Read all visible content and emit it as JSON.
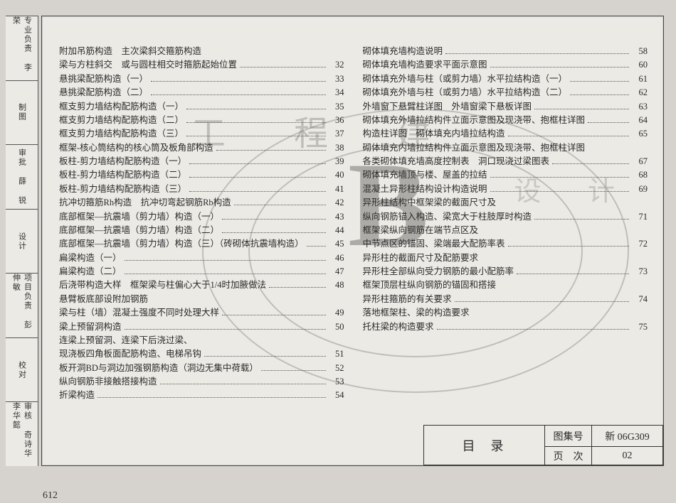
{
  "watermark": {
    "line1": "工 程 建",
    "line2": "设 计",
    "big_letter": "B"
  },
  "spine_labels": [
    "专业负责 李 荣",
    "制图 ",
    "审批 薛 锐",
    "设计 ",
    "项目负责 彭伸敏",
    "校对 ",
    "审核 奇诗华 李华懿"
  ],
  "columns": [
    [
      {
        "t": "附加吊筋构造　主次梁斜交箍筋构造",
        "p": ""
      },
      {
        "t": "梁与方柱斜交　或与圆柱相交时箍筋起始位置",
        "p": "32"
      },
      {
        "t": "悬挑梁配筋构造（一）",
        "p": "33"
      },
      {
        "t": "悬挑梁配筋构造（二）",
        "p": "34"
      },
      {
        "t": "框支剪力墙结构配筋构造（一）",
        "p": "35"
      },
      {
        "t": "框支剪力墙结构配筋构造（二）",
        "p": "36"
      },
      {
        "t": "框支剪力墙结构配筋构造（三）",
        "p": "37"
      },
      {
        "t": "框架-核心筒结构的核心筒及板角部构造",
        "p": "38"
      },
      {
        "t": "板柱-剪力墙结构配筋构造（一）",
        "p": "39"
      },
      {
        "t": "板柱-剪力墙结构配筋构造（二）",
        "p": "40"
      },
      {
        "t": "板柱-剪力墙结构配筋构造（三）",
        "p": "41"
      },
      {
        "t": "抗冲切箍筋Rh构造　抗冲切弯起钢筋Rb构造",
        "p": "42"
      },
      {
        "t": "底部框架—抗震墙（剪力墙）构造（一）",
        "p": "43"
      },
      {
        "t": "底部框架—抗震墙（剪力墙）构造（二）",
        "p": "44"
      },
      {
        "t": "底部框架—抗震墙（剪力墙）构造（三）（砖砌体抗震墙构造）",
        "p": "45"
      },
      {
        "t": "扁梁构造（一）",
        "p": "46"
      },
      {
        "t": "扁梁构造（二）",
        "p": "47"
      },
      {
        "t": "后浇带构造大样　框架梁与柱偏心大于1/4时加腋做法",
        "p": "48"
      },
      {
        "t": "悬臂板底部设附加钢筋",
        "p": ""
      },
      {
        "t": "梁与柱（墙）混凝土强度不同时处理大样",
        "p": "49"
      },
      {
        "t": "梁上预留洞构造",
        "p": "50"
      },
      {
        "t": "连梁上预留洞、连梁下后浇过梁、",
        "p": ""
      },
      {
        "t": "现浇板四角板面配筋构造、电梯吊钩",
        "p": "51"
      },
      {
        "t": "板开洞BD与洞边加强钢筋构造（洞边无集中荷载）",
        "p": "52"
      },
      {
        "t": "纵向钢筋非接触搭接构造",
        "p": "53"
      },
      {
        "t": "折梁构造",
        "p": "54"
      }
    ],
    [
      {
        "t": "砌体填充墙构造说明",
        "p": "58"
      },
      {
        "t": "砌体填充墙构造要求平面示意图",
        "p": "60"
      },
      {
        "t": "砌体填充外墙与柱（或剪力墙）水平拉结构造（一）",
        "p": "61"
      },
      {
        "t": "砌体填充外墙与柱（或剪力墙）水平拉结构造（二）",
        "p": "62"
      },
      {
        "t": "外墙窗下悬臂柱详图　外墙窗梁下悬板详图",
        "p": "63"
      },
      {
        "t": "砌体填充外墙拉结构件立面示意图及现浇带、抱框柱详图",
        "p": "64"
      },
      {
        "t": "构造柱详图　砌体填充内墙拉结构造",
        "p": "65"
      },
      {
        "t": "砌体填充内墙拉结构件立面示意图及现浇带、抱框柱详图",
        "p": ""
      },
      {
        "t": "各类砌体填充墙高度控制表　洞口现浇过梁图表",
        "p": "67"
      },
      {
        "t": "砌体填充墙顶与楼、屋盖的拉结",
        "p": "68"
      },
      {
        "t": "混凝土异形柱结构设计构造说明",
        "p": "69"
      },
      {
        "t": "异形柱结构中框架梁的截面尺寸及",
        "p": ""
      },
      {
        "t": "纵向钢筋锚入构造、梁宽大于柱肢厚时构造",
        "p": "71"
      },
      {
        "t": "框架梁纵向钢筋在端节点区及",
        "p": ""
      },
      {
        "t": "中节点区的锚固、梁端最大配筋率表",
        "p": "72"
      },
      {
        "t": "异形柱的截面尺寸及配筋要求",
        "p": ""
      },
      {
        "t": "异形柱全部纵向受力钢筋的最小配筋率",
        "p": "73"
      },
      {
        "t": "框架顶层柱纵向钢筋的锚固和搭接",
        "p": ""
      },
      {
        "t": "异形柱箍筋的有关要求",
        "p": "74"
      },
      {
        "t": "落地框架柱、梁的构造要求",
        "p": ""
      },
      {
        "t": "托柱梁的构造要求",
        "p": "75"
      }
    ]
  ],
  "titleblock": {
    "mulu": "目录",
    "k1": "图集号",
    "v1": "新 06G309",
    "k2": "页　次",
    "v2": "02"
  },
  "page_number": "612",
  "colors": {
    "page_bg": "#eceae5",
    "scan_bg": "#d6d3ce",
    "text": "#2a2a2a",
    "rule": "#444444",
    "watermark": "rgba(110,108,104,0.35)"
  }
}
